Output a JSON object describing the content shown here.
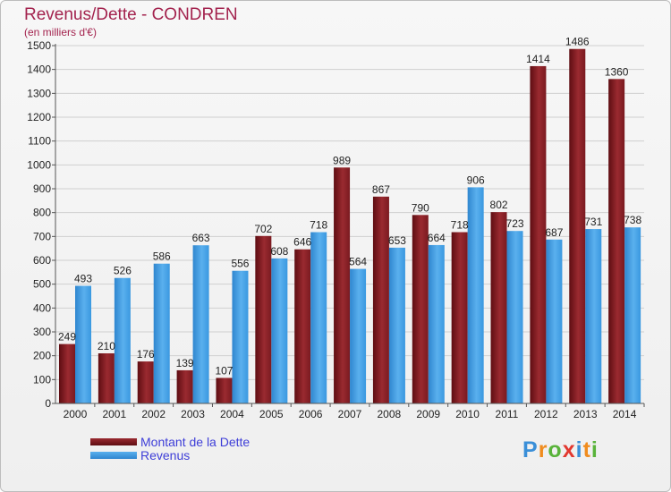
{
  "chart_data": {
    "type": "bar",
    "title": "Revenus/Dette - CONDREN",
    "subtitle": "(en milliers d'€)",
    "xlabel": "",
    "ylabel": "",
    "ylim": [
      0,
      1500
    ],
    "yticks": [
      0,
      100,
      200,
      300,
      400,
      500,
      600,
      700,
      800,
      900,
      1000,
      1100,
      1200,
      1300,
      1400,
      1500
    ],
    "grid": true,
    "legend_position": "bottom-left",
    "categories": [
      "2000",
      "2001",
      "2002",
      "2003",
      "2004",
      "2005",
      "2006",
      "2007",
      "2008",
      "2009",
      "2010",
      "2011",
      "2012",
      "2013",
      "2014"
    ],
    "series": [
      {
        "name": "Montant de la Dette",
        "color": "#8a1f24",
        "values": [
          249,
          210,
          176,
          139,
          107,
          702,
          646,
          989,
          867,
          790,
          718,
          802,
          1414,
          1486,
          1360
        ]
      },
      {
        "name": "Revenus",
        "color": "#3a98e0",
        "values": [
          493,
          526,
          586,
          663,
          556,
          608,
          718,
          564,
          653,
          664,
          906,
          723,
          687,
          731,
          738
        ]
      }
    ]
  },
  "logo": {
    "letters": [
      "P",
      "r",
      "o",
      "x",
      "i",
      "t",
      "i"
    ],
    "colors": [
      "#3a8fd8",
      "#f08c1e",
      "#59b33a",
      "#e2382f",
      "#3a8fd8",
      "#f08c1e",
      "#59b33a"
    ]
  }
}
